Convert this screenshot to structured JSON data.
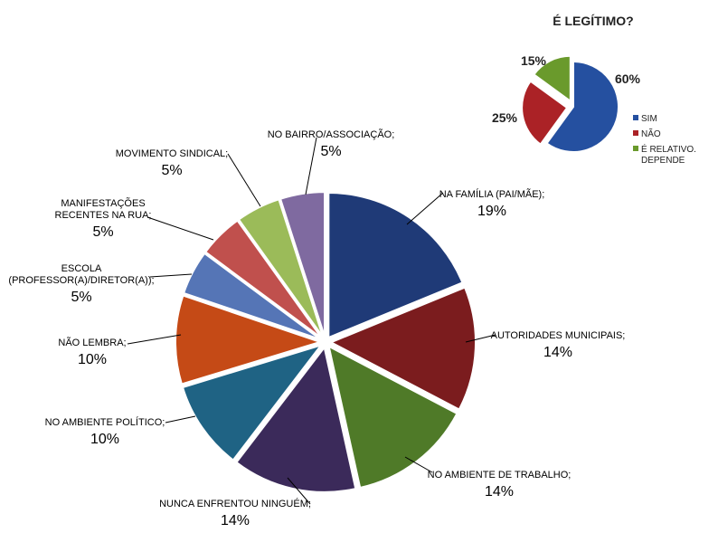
{
  "chart_data": [
    {
      "type": "pie",
      "title": "",
      "categories": [
        "NA FAMÍLIA (PAI/MÃE);",
        "AUTORIDADES MUNICIPAIS;",
        "NO AMBIENTE DE TRABALHO;",
        "NUNCA ENFRENTOU NINGUÉM;",
        "NO AMBIENTE POLÍTICO;",
        "NÃO LEMBRA;",
        "ESCOLA (PROFESSOR(A)/DIRETOR(A));",
        "MANIFESTAÇÕES RECENTES NA RUA;",
        "MOVIMENTO SINDICAL;",
        "NO BAIRRO/ASSOCIAÇÃO;"
      ],
      "label_lines": [
        [
          "NA FAMÍLIA (PAI/MÃE);"
        ],
        [
          "AUTORIDADES MUNICIPAIS;"
        ],
        [
          "NO AMBIENTE DE TRABALHO;"
        ],
        [
          "NUNCA ENFRENTOU NINGUÉM;"
        ],
        [
          "NO AMBIENTE POLÍTICO;"
        ],
        [
          "NÃO LEMBRA;"
        ],
        [
          "ESCOLA",
          "(PROFESSOR(A)/DIRETOR(A));"
        ],
        [
          "MANIFESTAÇÕES",
          "RECENTES NA RUA;"
        ],
        [
          "MOVIMENTO SINDICAL;"
        ],
        [
          "NO BAIRRO/ASSOCIAÇÃO;"
        ]
      ],
      "values": [
        19,
        14,
        14,
        14,
        10,
        10,
        5,
        5,
        5,
        5
      ],
      "value_labels": [
        "19%",
        "14%",
        "14%",
        "14%",
        "10%",
        "10%",
        "5%",
        "5%",
        "5%",
        "5%"
      ],
      "colors": [
        "#1f3a77",
        "#7b1c1e",
        "#4f7a28",
        "#3b2a5a",
        "#1f6384",
        "#c54a16",
        "#5575b6",
        "#c0504d",
        "#9bbb59",
        "#7f6aa0"
      ],
      "exploded": true
    },
    {
      "type": "pie",
      "title": "É LEGÍTIMO?",
      "categories": [
        "SIM",
        "NÃO",
        "É RELATIVO. DEPENDE"
      ],
      "legend_lines": [
        [
          "SIM"
        ],
        [
          "NÃO"
        ],
        [
          "É RELATIVO.",
          "DEPENDE"
        ]
      ],
      "values": [
        60,
        25,
        15
      ],
      "value_labels": [
        "60%",
        "25%",
        "15%"
      ],
      "colors": [
        "#2550a0",
        "#ab2226",
        "#6a9a2c"
      ],
      "legend": "right",
      "exploded": true
    }
  ]
}
